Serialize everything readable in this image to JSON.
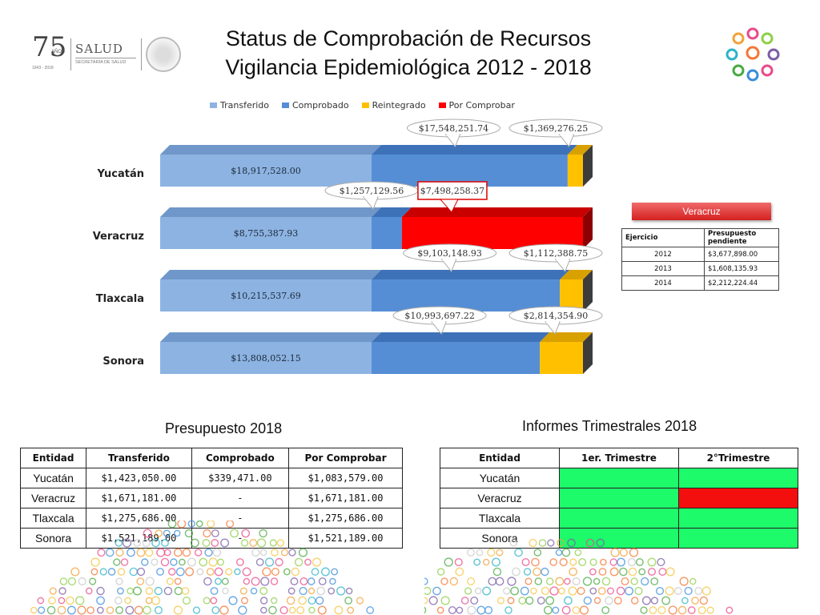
{
  "header": {
    "logo_number": "75",
    "logo_sub": "AÑOS",
    "logo_years": "1943 - 2018",
    "salud": "SALUD",
    "secretaria": "SECRETARÍA DE SALUD",
    "title_line1": "Status de Comprobación de Recursos",
    "title_line2": "Vigilancia Epidemiológica 2012 - 2018"
  },
  "colors": {
    "transferido": "#8db3e2",
    "comprobado": "#558ed5",
    "reintegrado": "#ffc000",
    "por_comprobar": "#ff0000",
    "green": "#1dfa6a",
    "red": "#f40f0f"
  },
  "chart_data": {
    "type": "bar",
    "orientation": "horizontal",
    "stacked": true,
    "legend_position": "top",
    "categories": [
      "Yucatán",
      "Veracruz",
      "Tlaxcala",
      "Sonora"
    ],
    "series": [
      {
        "name": "Transferido",
        "values": [
          18917528.0,
          8755387.93,
          10215537.69,
          13808052.15
        ],
        "labels": [
          "$18,917,528.00",
          "$8,755,387.93",
          "$10,215,537.69",
          "$13,808,052.15"
        ]
      },
      {
        "name": "Comprobado",
        "values": [
          17548251.74,
          1257129.56,
          9103148.93,
          10993697.22
        ],
        "labels": [
          "$17,548,251.74",
          "$1,257,129.56",
          "$9,103,148.93",
          "$10,993,697.22"
        ]
      },
      {
        "name": "Reintegrado",
        "values": [
          1369276.25,
          0,
          1112388.75,
          2814354.9
        ],
        "labels": [
          "$1,369,276.25",
          "",
          "$1,112,388.75",
          "$2,814,354.90"
        ]
      },
      {
        "name": "Por Comprobar",
        "values": [
          0,
          7498258.37,
          0,
          0
        ],
        "labels": [
          "",
          "$7,498,258.37",
          "",
          ""
        ]
      }
    ]
  },
  "veracruz_panel": {
    "button": "Veracruz",
    "head_ejercicio": "Ejercicio",
    "head_presupuesto": "Presupuesto pendiente",
    "rows": [
      {
        "year": "2012",
        "amount": "$3,677,898.00"
      },
      {
        "year": "2013",
        "amount": "$1,608,135.93"
      },
      {
        "year": "2014",
        "amount": "$2,212,224.44"
      }
    ]
  },
  "presupuesto": {
    "title": "Presupuesto 2018",
    "headers": [
      "Entidad",
      "Transferido",
      "Comprobado",
      "Por Comprobar"
    ],
    "rows": [
      [
        "Yucatán",
        "$1,423,050.00",
        "$339,471.00",
        "$1,083,579.00"
      ],
      [
        "Veracruz",
        "$1,671,181.00",
        "-",
        "$1,671,181.00"
      ],
      [
        "Tlaxcala",
        "$1,275,686.00",
        "-",
        "$1,275,686.00"
      ],
      [
        "Sonora",
        "$1,521,189.00",
        "-",
        "$1,521,189.00"
      ]
    ]
  },
  "informes": {
    "title": "Informes Trimestrales 2018",
    "headers": [
      "Entidad",
      "1er. Trimestre",
      "2°Trimestre"
    ],
    "rows": [
      {
        "entidad": "Yucatán",
        "t1": "green",
        "t2": "green"
      },
      {
        "entidad": "Veracruz",
        "t1": "green",
        "t2": "red"
      },
      {
        "entidad": "Tlaxcala",
        "t1": "green",
        "t2": "green"
      },
      {
        "entidad": "Sonora",
        "t1": "green",
        "t2": "green"
      }
    ]
  }
}
